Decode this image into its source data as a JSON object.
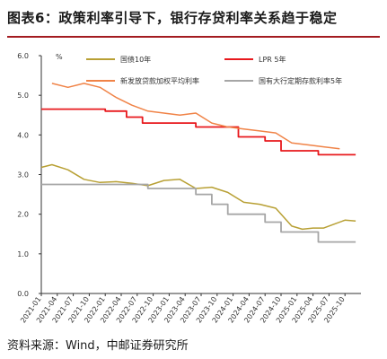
{
  "header": {
    "title": "图表6：政策利率引导下，银行存贷利率关系趋于稳定"
  },
  "footer": {
    "source": "资料来源：Wind，中邮证券研究所"
  },
  "chart_data": {
    "type": "line",
    "title": "图表6：政策利率引导下，银行存贷利率关系趋于稳定",
    "ylabel": "%",
    "ylim": [
      0,
      6
    ],
    "yticks": [
      "6.0",
      "5.0",
      "4.0",
      "3.0",
      "2.0",
      "1.0",
      "0.0"
    ],
    "xticks": [
      "2021-01",
      "2021-04",
      "2021-07",
      "2021-10",
      "2022-01",
      "2022-04",
      "2022-07",
      "2022-10",
      "2023-01",
      "2023-04",
      "2023-07",
      "2023-10",
      "2024-01",
      "2024-04",
      "2024-07",
      "2024-10",
      "2025-01",
      "2025-04",
      "2025-07",
      "2025-10"
    ],
    "legend_position": "top",
    "grid": false,
    "colors": {
      "cgb10": "#b8a034",
      "lpr5y": "#e8191d",
      "loan_rate": "#f08347",
      "deposit5y": "#a6a6a6"
    },
    "series": [
      {
        "name": "国债10年",
        "key": "cgb10",
        "x": [
          "2021-01",
          "2021-03",
          "2021-06",
          "2021-09",
          "2021-12",
          "2022-03",
          "2022-06",
          "2022-09",
          "2022-12",
          "2023-03",
          "2023-06",
          "2023-09",
          "2023-12",
          "2024-03",
          "2024-06",
          "2024-09",
          "2024-12",
          "2025-02",
          "2025-04",
          "2025-06",
          "2025-08",
          "2025-10",
          "2025-12"
        ],
        "values": [
          3.18,
          3.25,
          3.12,
          2.88,
          2.8,
          2.82,
          2.78,
          2.72,
          2.85,
          2.88,
          2.65,
          2.68,
          2.55,
          2.3,
          2.25,
          2.15,
          1.7,
          1.62,
          1.65,
          1.65,
          1.75,
          1.85,
          1.83
        ]
      },
      {
        "name": "LPR 5年",
        "key": "lpr5y",
        "x": [
          "2021-01",
          "2022-01",
          "2022-05",
          "2022-08",
          "2023-06",
          "2024-02",
          "2024-07",
          "2024-10",
          "2025-05",
          "2025-12"
        ],
        "values": [
          4.65,
          4.6,
          4.45,
          4.3,
          4.2,
          3.95,
          3.85,
          3.6,
          3.5,
          3.5
        ]
      },
      {
        "name": "新发放贷款加权平均利率",
        "key": "loan_rate",
        "x": [
          "2021-03",
          "2021-06",
          "2021-09",
          "2021-12",
          "2022-03",
          "2022-06",
          "2022-09",
          "2022-12",
          "2023-03",
          "2023-06",
          "2023-09",
          "2023-12",
          "2024-03",
          "2024-06",
          "2024-09",
          "2024-12",
          "2025-03",
          "2025-06",
          "2025-09"
        ],
        "values": [
          5.3,
          5.2,
          5.3,
          5.2,
          4.95,
          4.75,
          4.6,
          4.55,
          4.5,
          4.55,
          4.3,
          4.2,
          4.15,
          4.1,
          4.05,
          3.8,
          3.75,
          3.7,
          3.65
        ]
      },
      {
        "name": "国有大行定期存款利率5年",
        "key": "deposit5y",
        "x": [
          "2021-01",
          "2022-09",
          "2023-06",
          "2023-09",
          "2023-12",
          "2024-07",
          "2024-10",
          "2025-05",
          "2025-12"
        ],
        "values": [
          2.75,
          2.65,
          2.5,
          2.25,
          2.0,
          1.8,
          1.55,
          1.3,
          1.3
        ]
      }
    ]
  }
}
